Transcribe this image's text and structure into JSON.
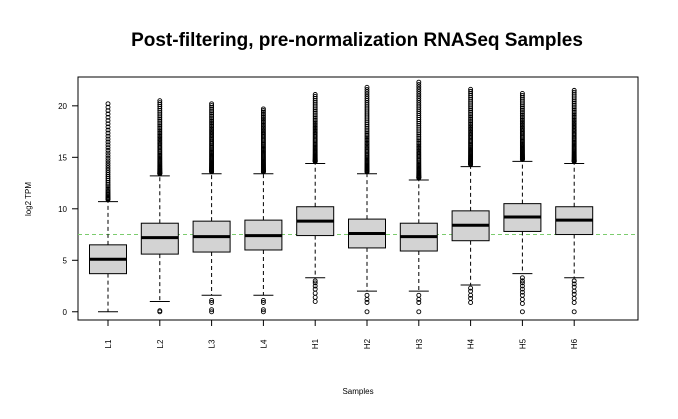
{
  "chart_data": {
    "type": "boxplot",
    "title": "Post-filtering, pre-normalization RNASeq Samples",
    "xlabel": "Samples",
    "ylabel": "log2 TPM",
    "ylim": [
      -0.8,
      22.8
    ],
    "yticks": [
      0,
      5,
      10,
      15,
      20
    ],
    "reference_line": {
      "y": 7.5,
      "style": "dashed",
      "color": "#7ccc6e"
    },
    "box_fill": "#d3d3d3",
    "categories": [
      "L1",
      "L2",
      "L3",
      "L4",
      "H1",
      "H2",
      "H3",
      "H4",
      "H5",
      "H6"
    ],
    "boxes": [
      {
        "name": "L1",
        "whisker_low": 0.0,
        "q1": 3.7,
        "median": 5.1,
        "q3": 6.5,
        "whisker_high": 10.7,
        "outliers_high": {
          "from": 10.9,
          "to": 20.2,
          "n": 45
        },
        "outliers_low": []
      },
      {
        "name": "L2",
        "whisker_low": 1.0,
        "q1": 5.6,
        "median": 7.2,
        "q3": 8.6,
        "whisker_high": 13.2,
        "outliers_high": {
          "from": 13.4,
          "to": 20.5,
          "n": 60
        },
        "outliers_low": [
          0.0,
          0.1
        ]
      },
      {
        "name": "L3",
        "whisker_low": 1.6,
        "q1": 5.8,
        "median": 7.3,
        "q3": 8.8,
        "whisker_high": 13.4,
        "outliers_high": {
          "from": 13.6,
          "to": 20.2,
          "n": 60
        },
        "outliers_low": [
          0.0,
          0.2,
          0.9,
          1.1
        ]
      },
      {
        "name": "L4",
        "whisker_low": 1.6,
        "q1": 6.0,
        "median": 7.4,
        "q3": 8.9,
        "whisker_high": 13.4,
        "outliers_high": {
          "from": 13.6,
          "to": 19.7,
          "n": 60
        },
        "outliers_low": [
          0.0,
          0.2,
          0.9,
          1.1
        ]
      },
      {
        "name": "H1",
        "whisker_low": 3.3,
        "q1": 7.4,
        "median": 8.8,
        "q3": 10.2,
        "whisker_high": 14.4,
        "outliers_high": {
          "from": 14.6,
          "to": 21.1,
          "n": 55
        },
        "outliers_low": [
          1.0,
          1.4,
          1.8,
          2.2,
          2.5,
          2.8,
          3.0
        ]
      },
      {
        "name": "H2",
        "whisker_low": 2.0,
        "q1": 6.2,
        "median": 7.6,
        "q3": 9.0,
        "whisker_high": 13.4,
        "outliers_high": {
          "from": 13.6,
          "to": 21.8,
          "n": 60
        },
        "outliers_low": [
          0.0,
          0.9,
          1.2,
          1.6
        ]
      },
      {
        "name": "H3",
        "whisker_low": 2.0,
        "q1": 5.9,
        "median": 7.3,
        "q3": 8.6,
        "whisker_high": 12.8,
        "outliers_high": {
          "from": 13.0,
          "to": 22.3,
          "n": 65
        },
        "outliers_low": [
          0.0,
          0.9,
          1.2,
          1.6
        ]
      },
      {
        "name": "H4",
        "whisker_low": 2.6,
        "q1": 6.9,
        "median": 8.4,
        "q3": 9.8,
        "whisker_high": 14.1,
        "outliers_high": {
          "from": 14.3,
          "to": 21.6,
          "n": 60
        },
        "outliers_low": [
          0.9,
          1.3,
          1.6,
          2.0,
          2.3
        ]
      },
      {
        "name": "H5",
        "whisker_low": 3.7,
        "q1": 7.8,
        "median": 9.2,
        "q3": 10.5,
        "whisker_high": 14.6,
        "outliers_high": {
          "from": 14.8,
          "to": 21.2,
          "n": 55
        },
        "outliers_low": [
          0.0,
          0.8,
          1.2,
          1.6,
          1.9,
          2.2,
          2.5,
          2.8,
          3.0,
          3.3
        ]
      },
      {
        "name": "H6",
        "whisker_low": 3.3,
        "q1": 7.5,
        "median": 8.9,
        "q3": 10.2,
        "whisker_high": 14.4,
        "outliers_high": {
          "from": 14.6,
          "to": 21.5,
          "n": 60
        },
        "outliers_low": [
          0.0,
          0.9,
          1.3,
          1.7,
          2.0,
          2.4,
          2.7,
          3.0
        ]
      }
    ]
  }
}
